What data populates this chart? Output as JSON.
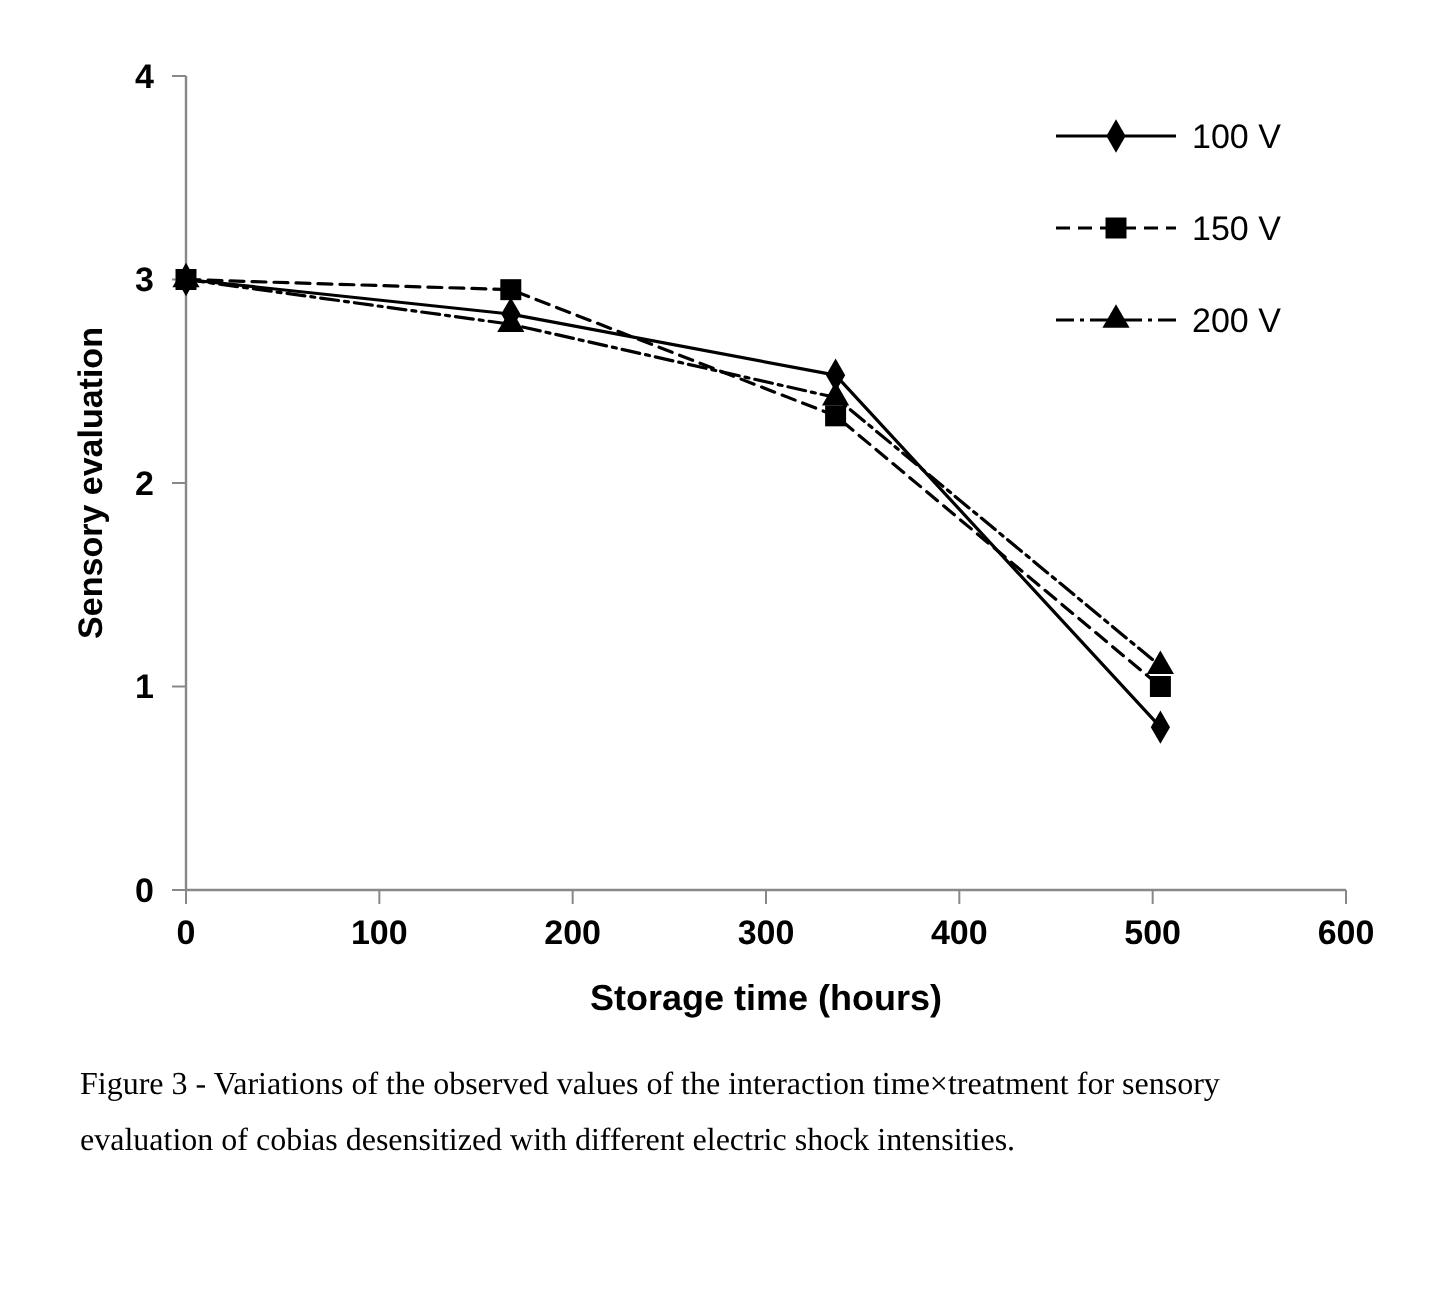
{
  "chart_data": {
    "type": "line",
    "xlabel": "Storage time (hours)",
    "ylabel": "Sensory evaluation",
    "x": [
      0,
      168,
      336,
      504
    ],
    "series": [
      {
        "name": "100 V",
        "color": "#000000",
        "values": [
          3,
          2.83,
          2.53,
          0.8
        ],
        "marker": "diamond",
        "line_style": "solid"
      },
      {
        "name": "150 V",
        "color": "#000000",
        "values": [
          3,
          2.95,
          2.33,
          1.0
        ],
        "marker": "square",
        "line_style": "dashed"
      },
      {
        "name": "200 V",
        "color": "#000000",
        "values": [
          3,
          2.78,
          2.42,
          1.1
        ],
        "marker": "triangle",
        "line_style": "dotted"
      }
    ],
    "xlim": [
      0,
      600
    ],
    "xticks": [
      0,
      100,
      200,
      300,
      400,
      500,
      600
    ],
    "ylim": [
      0,
      4
    ],
    "yticks": [
      0,
      1,
      2,
      3,
      4
    ],
    "grid": false,
    "legend": "top right",
    "annotations": [
      "Figure 3 - Variations of the observed values of the interaction time×treatment for sensory evaluation of cobias desensitized with different electric shock intensities."
    ]
  }
}
